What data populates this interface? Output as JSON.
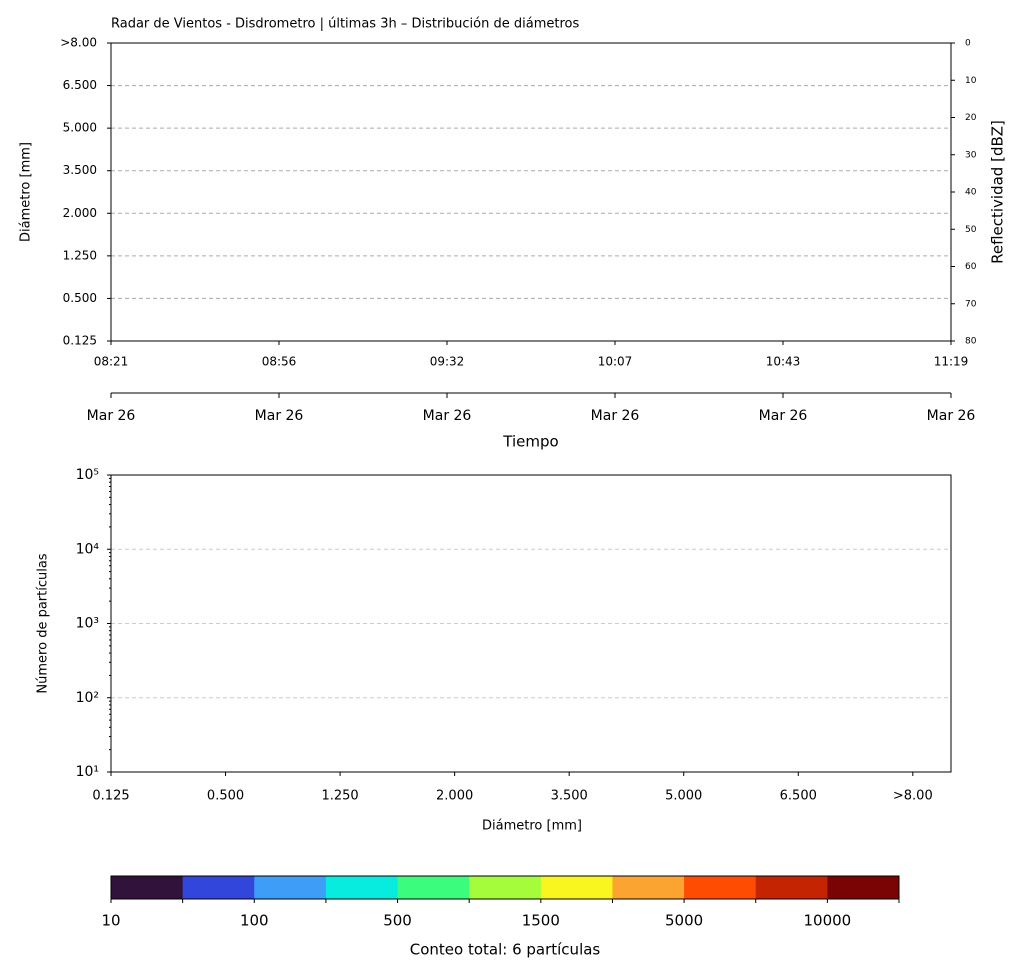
{
  "chart_data": [
    {
      "type": "heatmap",
      "title": "Radar de Vientos - Disdrometro | últimas 3h – Distribución de diámetros",
      "categories": [
        "08:21",
        "08:56",
        "09:32",
        "10:07",
        "10:43",
        "11:19"
      ],
      "date_labels": [
        "Mar 26",
        "Mar 26",
        "Mar 26",
        "Mar 26",
        "Mar 26",
        "Mar 26"
      ],
      "xlabel": "Tiempo",
      "y_categories": [
        "0.125",
        "0.500",
        "1.250",
        "2.000",
        "3.500",
        "5.000",
        "6.500",
        ">8.00"
      ],
      "ylabel": "Diámetro [mm]",
      "y2label": "Reflectividad [dBZ]",
      "y2lim": [
        0,
        80
      ],
      "y2ticks": [
        0,
        10,
        20,
        30,
        40,
        50,
        60,
        70,
        80
      ],
      "grid": true
    },
    {
      "type": "bar",
      "categories": [
        "0.125",
        "0.500",
        "1.250",
        "2.000",
        "3.500",
        "5.000",
        "6.500",
        ">8.00"
      ],
      "xlabel": "Diámetro [mm]",
      "ylabel": "Número de partículas",
      "log_scale": true,
      "ylim": [
        10,
        100000
      ],
      "yticks": [
        {
          "value": 10,
          "label": "10¹"
        },
        {
          "value": 100,
          "label": "10²"
        },
        {
          "value": 1000,
          "label": "10³"
        },
        {
          "value": 10000,
          "label": "10⁴"
        },
        {
          "value": 100000,
          "label": "10⁵"
        }
      ],
      "grid": true
    },
    {
      "type": "colorbar",
      "colors": [
        "#30123b",
        "#3246dc",
        "#3d9df7",
        "#08ecdf",
        "#3bfc7d",
        "#a4fc3b",
        "#f9f51f",
        "#fca432",
        "#fe4c03",
        "#c52402",
        "#7a0403"
      ],
      "categories": [
        "10",
        null,
        "100",
        null,
        "500",
        null,
        "1500",
        null,
        "5000",
        null,
        "10000",
        null
      ],
      "label": "Conteo total: 6 partículas"
    }
  ]
}
